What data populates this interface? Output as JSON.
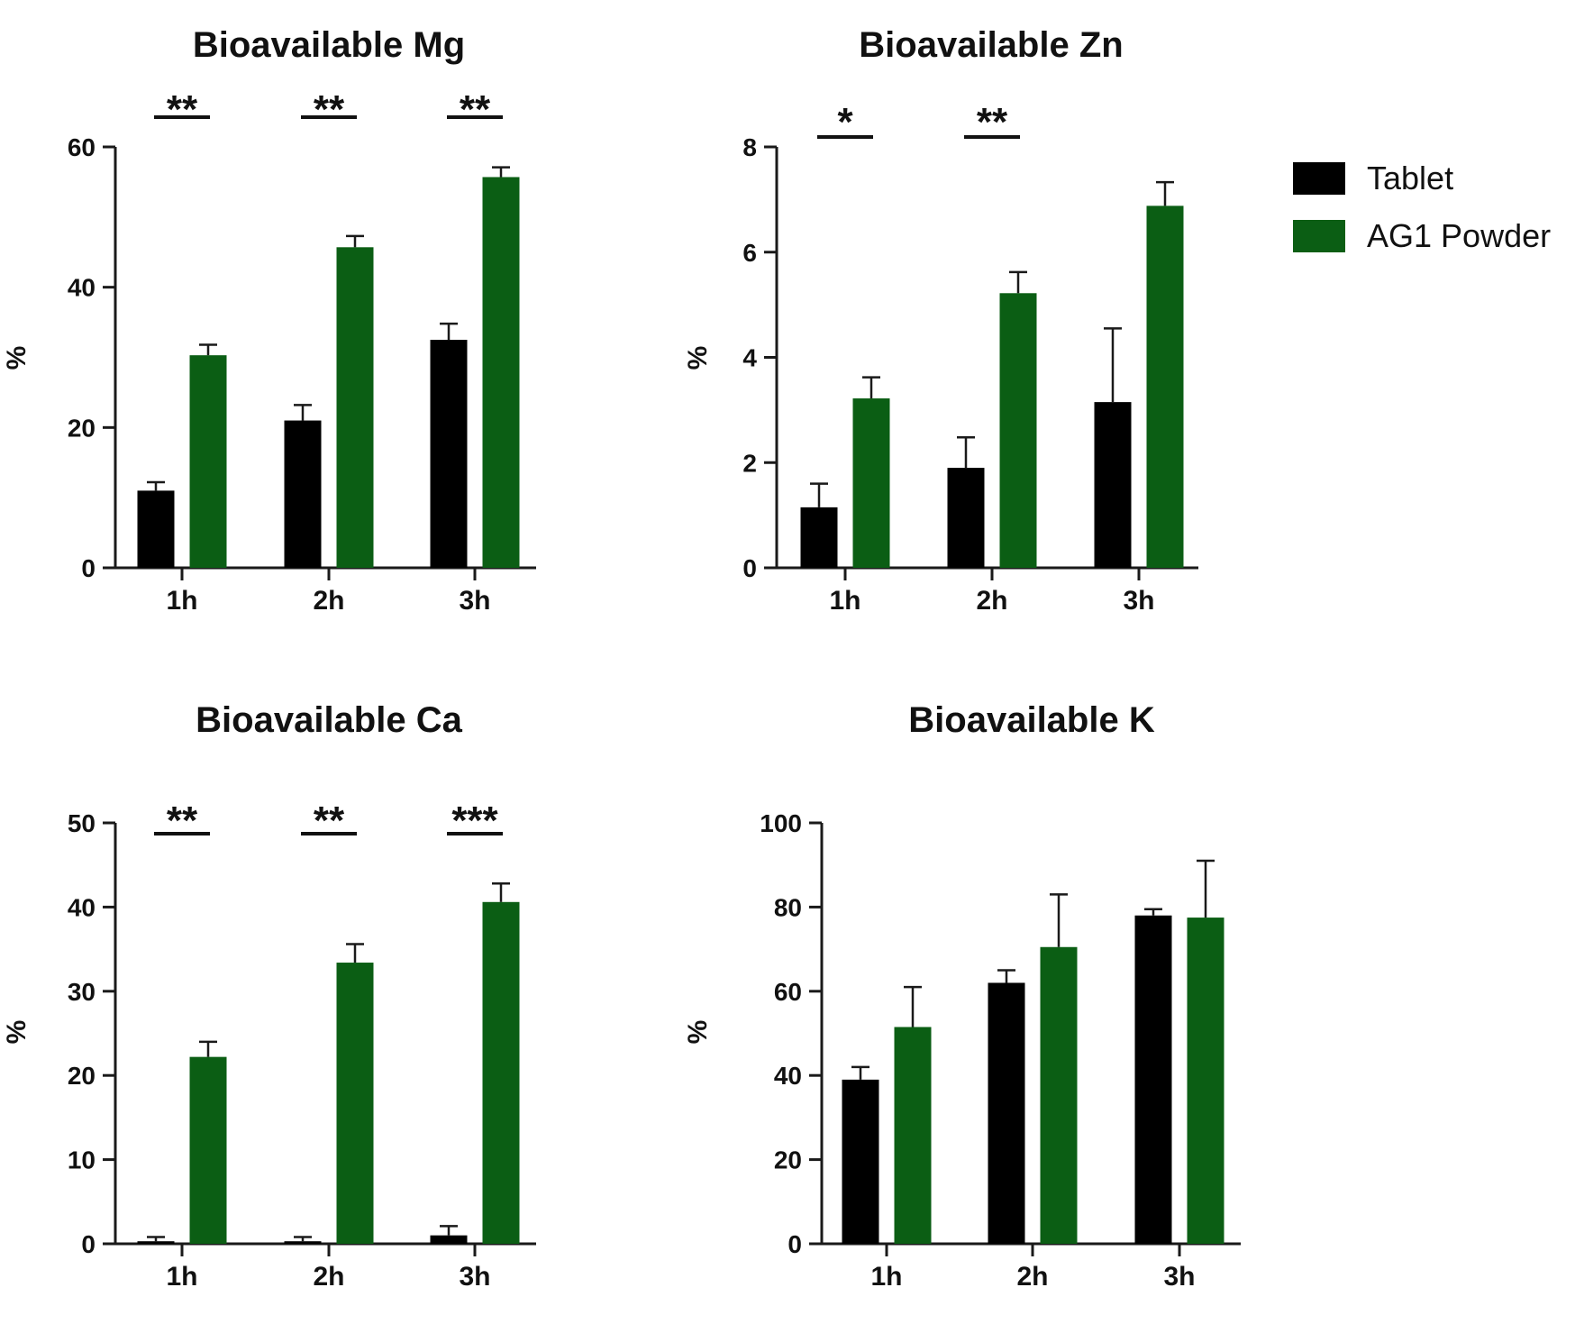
{
  "legend": {
    "items": [
      {
        "label": "Tablet",
        "color": "#000000"
      },
      {
        "label": "AG1 Powder",
        "color": "#0b5e14"
      }
    ]
  },
  "chart_data": [
    {
      "type": "bar",
      "title": "Bioavailable Mg",
      "ylabel": "%",
      "xlabel": "",
      "categories": [
        "1h",
        "2h",
        "3h"
      ],
      "ylim": [
        0,
        60
      ],
      "yticks": [
        0,
        20,
        40,
        60
      ],
      "series": [
        {
          "name": "Tablet",
          "values": [
            11,
            21,
            32.5
          ],
          "errors": [
            1.2,
            2.2,
            2.3
          ]
        },
        {
          "name": "AG1 Powder",
          "values": [
            30.3,
            45.7,
            55.7
          ],
          "errors": [
            1.5,
            1.6,
            1.4
          ]
        }
      ],
      "significance": [
        "**",
        "**",
        "**"
      ]
    },
    {
      "type": "bar",
      "title": "Bioavailable Zn",
      "ylabel": "%",
      "xlabel": "",
      "categories": [
        "1h",
        "2h",
        "3h"
      ],
      "ylim": [
        0,
        8
      ],
      "yticks": [
        0,
        2,
        4,
        6,
        8
      ],
      "series": [
        {
          "name": "Tablet",
          "values": [
            1.15,
            1.9,
            3.15
          ],
          "errors": [
            0.45,
            0.58,
            1.4
          ]
        },
        {
          "name": "AG1 Powder",
          "values": [
            3.22,
            5.22,
            6.88
          ],
          "errors": [
            0.4,
            0.4,
            0.45
          ]
        }
      ],
      "significance": [
        "*",
        "**",
        ""
      ]
    },
    {
      "type": "bar",
      "title": "Bioavailable Ca",
      "ylabel": "%",
      "xlabel": "",
      "categories": [
        "1h",
        "2h",
        "3h"
      ],
      "ylim": [
        0,
        50
      ],
      "yticks": [
        0,
        10,
        20,
        30,
        40,
        50
      ],
      "series": [
        {
          "name": "Tablet",
          "values": [
            0.3,
            0.3,
            1.0
          ],
          "errors": [
            0.5,
            0.5,
            1.1
          ]
        },
        {
          "name": "AG1 Powder",
          "values": [
            22.2,
            33.4,
            40.6
          ],
          "errors": [
            1.8,
            2.2,
            2.2
          ]
        }
      ],
      "significance": [
        "**",
        "**",
        "***"
      ]
    },
    {
      "type": "bar",
      "title": "Bioavailable K",
      "ylabel": "%",
      "xlabel": "",
      "categories": [
        "1h",
        "2h",
        "3h"
      ],
      "ylim": [
        0,
        100
      ],
      "yticks": [
        0,
        20,
        40,
        60,
        80,
        100
      ],
      "series": [
        {
          "name": "Tablet",
          "values": [
            39,
            62,
            78
          ],
          "errors": [
            3,
            3,
            1.5
          ]
        },
        {
          "name": "AG1 Powder",
          "values": [
            51.5,
            70.5,
            77.5
          ],
          "errors": [
            9.5,
            12.5,
            13.5
          ]
        }
      ],
      "significance": [
        "",
        "",
        ""
      ]
    }
  ]
}
